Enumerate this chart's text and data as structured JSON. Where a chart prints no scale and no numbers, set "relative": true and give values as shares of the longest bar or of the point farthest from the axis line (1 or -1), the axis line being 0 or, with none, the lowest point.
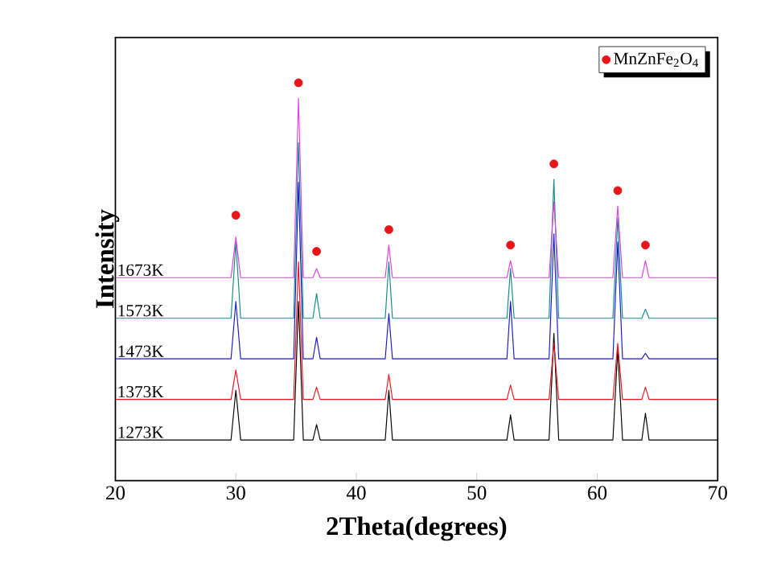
{
  "chart_data": {
    "type": "line",
    "relative": true,
    "xlabel": "2Theta(degrees)",
    "ylabel": "Intensity",
    "xlim": [
      20,
      70
    ],
    "xticks": [
      20,
      30,
      40,
      50,
      60,
      70
    ],
    "tick_labels": "x",
    "legend": "top right",
    "series": [
      {
        "name": "1273K",
        "color": "#000000",
        "x": [
          20,
          29.6,
          30.0,
          30.4,
          34.8,
          35.2,
          35.6,
          36.4,
          36.7,
          37.0,
          42.4,
          42.7,
          43.0,
          52.5,
          52.8,
          53.1,
          56.0,
          56.4,
          56.8,
          61.3,
          61.7,
          62.1,
          63.7,
          64.0,
          64.3,
          70
        ],
        "values": [
          0.102,
          0.102,
          0.227,
          0.102,
          0.102,
          0.45,
          0.102,
          0.102,
          0.141,
          0.102,
          0.102,
          0.227,
          0.102,
          0.102,
          0.165,
          0.102,
          0.102,
          0.37,
          0.102,
          0.102,
          0.33,
          0.102,
          0.102,
          0.169,
          0.102,
          0.102
        ]
      },
      {
        "name": "1373K",
        "color": "#e8161b",
        "x": [
          20,
          29.6,
          30.0,
          30.4,
          34.8,
          35.2,
          35.6,
          36.4,
          36.7,
          37.0,
          42.4,
          42.7,
          43.0,
          52.5,
          52.8,
          53.1,
          56.0,
          56.4,
          56.8,
          61.3,
          61.7,
          62.1,
          63.7,
          64.0,
          64.3,
          70
        ],
        "values": [
          0.204,
          0.204,
          0.278,
          0.204,
          0.204,
          0.55,
          0.204,
          0.204,
          0.235,
          0.204,
          0.204,
          0.267,
          0.204,
          0.204,
          0.24,
          0.204,
          0.204,
          0.345,
          0.204,
          0.204,
          0.345,
          0.204,
          0.204,
          0.235,
          0.204,
          0.204
        ]
      },
      {
        "name": "1473K",
        "color": "#1a1acc",
        "x": [
          20,
          29.6,
          30.0,
          30.4,
          34.8,
          35.2,
          35.6,
          36.4,
          36.7,
          37.0,
          42.4,
          42.7,
          43.0,
          52.5,
          52.8,
          53.1,
          56.0,
          56.4,
          56.8,
          61.3,
          61.7,
          62.1,
          63.7,
          64.0,
          64.3,
          70
        ],
        "values": [
          0.306,
          0.306,
          0.45,
          0.306,
          0.306,
          0.75,
          0.306,
          0.306,
          0.36,
          0.306,
          0.306,
          0.42,
          0.306,
          0.306,
          0.45,
          0.306,
          0.306,
          0.62,
          0.306,
          0.306,
          0.6,
          0.306,
          0.306,
          0.32,
          0.306,
          0.306
        ]
      },
      {
        "name": "1573K",
        "color": "#138a8a",
        "x": [
          20,
          29.6,
          30.0,
          30.4,
          34.8,
          35.2,
          35.6,
          36.4,
          36.7,
          37.0,
          42.4,
          42.7,
          43.0,
          52.5,
          52.8,
          53.1,
          56.0,
          56.4,
          56.8,
          61.3,
          61.7,
          62.1,
          63.7,
          64.0,
          64.3,
          70
        ],
        "values": [
          0.408,
          0.408,
          0.6,
          0.408,
          0.408,
          0.85,
          0.408,
          0.408,
          0.47,
          0.408,
          0.408,
          0.55,
          0.408,
          0.408,
          0.533,
          0.408,
          0.408,
          0.757,
          0.408,
          0.408,
          0.66,
          0.408,
          0.408,
          0.431,
          0.408,
          0.408
        ]
      },
      {
        "name": "1673K",
        "color": "#e040e0",
        "x": [
          20,
          29.6,
          30.0,
          30.4,
          34.8,
          35.2,
          35.6,
          36.4,
          36.7,
          37.0,
          42.4,
          42.7,
          43.0,
          52.5,
          52.8,
          53.1,
          56.0,
          56.4,
          56.8,
          61.3,
          61.7,
          62.1,
          63.7,
          64.0,
          64.3,
          70
        ],
        "values": [
          0.51,
          0.51,
          0.612,
          0.51,
          0.51,
          0.961,
          0.51,
          0.51,
          0.533,
          0.51,
          0.51,
          0.592,
          0.51,
          0.51,
          0.553,
          0.51,
          0.51,
          0.7,
          0.51,
          0.51,
          0.69,
          0.51,
          0.51,
          0.553,
          0.51,
          0.51
        ]
      },
      {
        "name": "MnZnFe$_{2}$O$_{4}$",
        "type": "scatter",
        "marker": "circle",
        "color": "#e8161b",
        "x": [
          30.0,
          35.2,
          36.7,
          42.7,
          52.8,
          56.4,
          61.7,
          64.0
        ],
        "values": [
          0.667,
          1,
          0.576,
          0.631,
          0.592,
          0.796,
          0.729,
          0.592
        ]
      }
    ]
  }
}
